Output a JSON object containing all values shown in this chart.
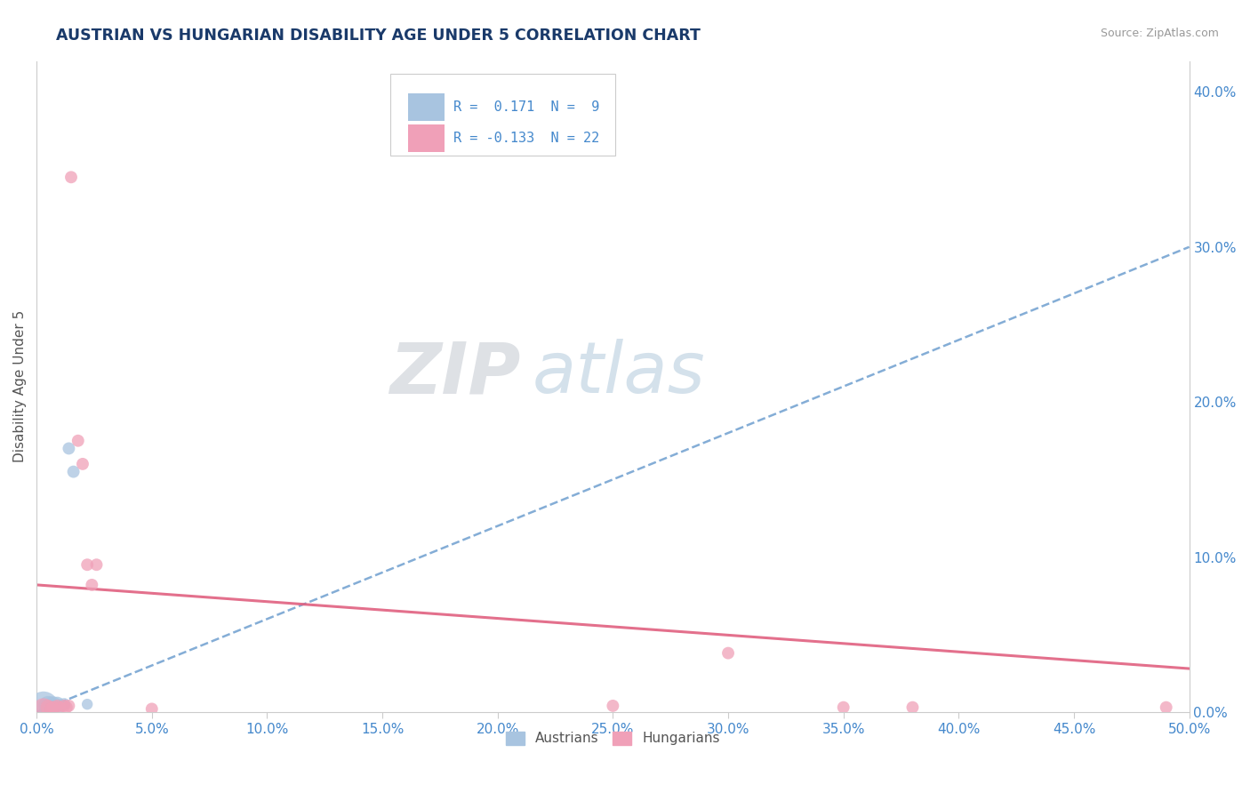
{
  "title": "AUSTRIAN VS HUNGARIAN DISABILITY AGE UNDER 5 CORRELATION CHART",
  "source": "Source: ZipAtlas.com",
  "ylabel_label": "Disability Age Under 5",
  "xlim": [
    0.0,
    0.5
  ],
  "ylim": [
    0.0,
    0.42
  ],
  "xticks": [
    0.0,
    0.05,
    0.1,
    0.15,
    0.2,
    0.25,
    0.3,
    0.35,
    0.4,
    0.45,
    0.5
  ],
  "yticks": [
    0.0,
    0.1,
    0.2,
    0.3,
    0.4
  ],
  "austrians": {
    "color": "#a8c4e0",
    "R": 0.171,
    "N": 9,
    "points": [
      [
        0.003,
        0.0035
      ],
      [
        0.005,
        0.004
      ],
      [
        0.007,
        0.0045
      ],
      [
        0.009,
        0.005
      ],
      [
        0.01,
        0.004
      ],
      [
        0.012,
        0.005
      ],
      [
        0.014,
        0.17
      ],
      [
        0.016,
        0.155
      ],
      [
        0.022,
        0.005
      ]
    ],
    "sizes": [
      600,
      250,
      200,
      150,
      120,
      100,
      100,
      100,
      80
    ]
  },
  "hungarians": {
    "color": "#f0a0b8",
    "R": -0.133,
    "N": 22,
    "points": [
      [
        0.003,
        0.002
      ],
      [
        0.005,
        0.003
      ],
      [
        0.006,
        0.002
      ],
      [
        0.007,
        0.003
      ],
      [
        0.008,
        0.003
      ],
      [
        0.009,
        0.004
      ],
      [
        0.01,
        0.003
      ],
      [
        0.012,
        0.004
      ],
      [
        0.013,
        0.003
      ],
      [
        0.014,
        0.004
      ],
      [
        0.015,
        0.345
      ],
      [
        0.018,
        0.175
      ],
      [
        0.02,
        0.16
      ],
      [
        0.022,
        0.095
      ],
      [
        0.024,
        0.082
      ],
      [
        0.026,
        0.095
      ],
      [
        0.05,
        0.002
      ],
      [
        0.25,
        0.004
      ],
      [
        0.3,
        0.038
      ],
      [
        0.35,
        0.003
      ],
      [
        0.38,
        0.003
      ],
      [
        0.49,
        0.003
      ]
    ],
    "sizes": [
      300,
      150,
      100,
      100,
      100,
      100,
      100,
      100,
      100,
      100,
      100,
      100,
      100,
      100,
      100,
      100,
      100,
      100,
      100,
      100,
      100,
      100
    ]
  },
  "aus_line": [
    [
      0.0,
      0.0
    ],
    [
      0.5,
      0.3
    ]
  ],
  "hun_line": [
    [
      0.0,
      0.082
    ],
    [
      0.5,
      0.028
    ]
  ],
  "watermark_zip": "ZIP",
  "watermark_atlas": "atlas",
  "background_color": "#ffffff",
  "grid_color": "#cccccc",
  "title_color": "#1a3a6a",
  "axis_label_color": "#555555",
  "tick_color": "#4488cc",
  "aus_line_color": "#6699cc",
  "hun_line_color": "#e06080",
  "legend_aus_color": "#a8c4e0",
  "legend_hun_color": "#f0a0b8"
}
